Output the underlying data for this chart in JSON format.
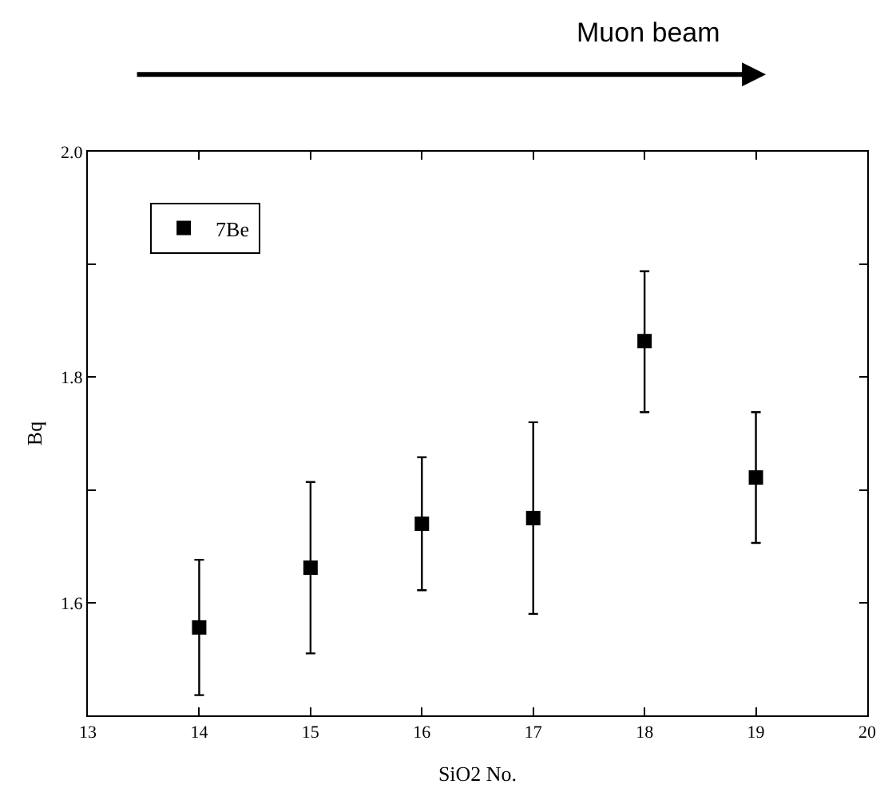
{
  "chart_data": {
    "type": "scatter",
    "xlabel": "SiO2 No.",
    "ylabel": "Bq",
    "annotations": [
      "Muon beam"
    ],
    "x": [
      14,
      15,
      16,
      17,
      18,
      19
    ],
    "series": [
      {
        "name": "7Be",
        "color": "#000000",
        "values": [
          1.578,
          1.631,
          1.67,
          1.675,
          1.832,
          1.711
        ],
        "errors": [
          [
            1.518,
            1.638
          ],
          [
            1.555,
            1.707
          ],
          [
            1.611,
            1.729
          ],
          [
            1.59,
            1.76
          ],
          [
            1.769,
            1.894
          ],
          [
            1.653,
            1.769
          ]
        ]
      }
    ],
    "xlim": [
      13,
      20
    ],
    "xticks": [
      13,
      14,
      15,
      16,
      17,
      18,
      19,
      20
    ],
    "ylim": [
      1.5,
      2.0
    ],
    "yticks": [
      1.6,
      {
        "value": 1.7,
        "label": null
      },
      1.8,
      {
        "value": 1.9,
        "label": null
      },
      {
        "value": 2.0,
        "label": "2.0"
      }
    ],
    "marker": "square",
    "legend": "top left"
  }
}
